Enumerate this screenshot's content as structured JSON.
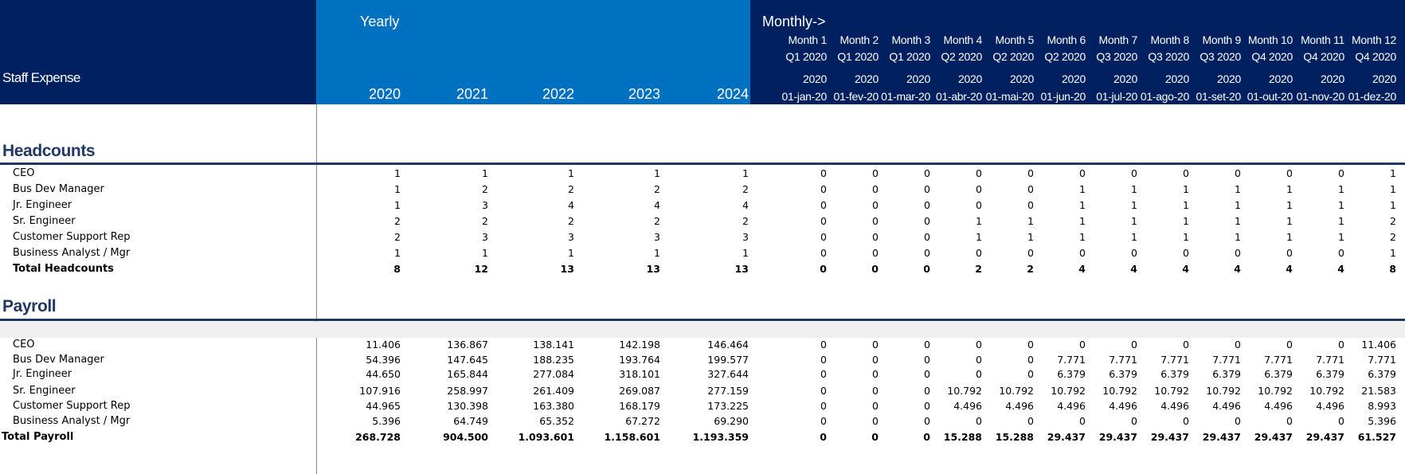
{
  "header": {
    "staff_expense": "Staff Expense",
    "yearly": "Yearly",
    "monthly": "Monthly->",
    "years": [
      "2020",
      "2021",
      "2022",
      "2023",
      "2024"
    ],
    "months": [
      {
        "m": "Month 1",
        "q": "Q1 2020",
        "y": "2020",
        "d": "01-jan-20"
      },
      {
        "m": "Month 2",
        "q": "Q1 2020",
        "y": "2020",
        "d": "01-fev-20"
      },
      {
        "m": "Month 3",
        "q": "Q1 2020",
        "y": "2020",
        "d": "01-mar-20"
      },
      {
        "m": "Month 4",
        "q": "Q2 2020",
        "y": "2020",
        "d": "01-abr-20"
      },
      {
        "m": "Month 5",
        "q": "Q2 2020",
        "y": "2020",
        "d": "01-mai-20"
      },
      {
        "m": "Month 6",
        "q": "Q2 2020",
        "y": "2020",
        "d": "01-jun-20"
      },
      {
        "m": "Month 7",
        "q": "Q3 2020",
        "y": "2020",
        "d": "01-jul-20"
      },
      {
        "m": "Month 8",
        "q": "Q3 2020",
        "y": "2020",
        "d": "01-ago-20"
      },
      {
        "m": "Month 9",
        "q": "Q3 2020",
        "y": "2020",
        "d": "01-set-20"
      },
      {
        "m": "Month 10",
        "q": "Q4 2020",
        "y": "2020",
        "d": "01-out-20"
      },
      {
        "m": "Month 11",
        "q": "Q4 2020",
        "y": "2020",
        "d": "01-nov-20"
      },
      {
        "m": "Month 12",
        "q": "Q4 2020",
        "y": "2020",
        "d": "01-dez-20"
      }
    ]
  },
  "headcounts": {
    "title": "Headcounts",
    "rows": [
      {
        "label": "CEO",
        "yearly": [
          "1",
          "1",
          "1",
          "1",
          "1"
        ],
        "monthly": [
          "0",
          "0",
          "0",
          "0",
          "0",
          "0",
          "0",
          "0",
          "0",
          "0",
          "0",
          "1"
        ]
      },
      {
        "label": "Bus Dev Manager",
        "yearly": [
          "1",
          "2",
          "2",
          "2",
          "2"
        ],
        "monthly": [
          "0",
          "0",
          "0",
          "0",
          "0",
          "1",
          "1",
          "1",
          "1",
          "1",
          "1",
          "1"
        ]
      },
      {
        "label": "Jr. Engineer",
        "yearly": [
          "1",
          "3",
          "4",
          "4",
          "4"
        ],
        "monthly": [
          "0",
          "0",
          "0",
          "0",
          "0",
          "1",
          "1",
          "1",
          "1",
          "1",
          "1",
          "1"
        ]
      },
      {
        "label": "Sr. Engineer",
        "yearly": [
          "2",
          "2",
          "2",
          "2",
          "2"
        ],
        "monthly": [
          "0",
          "0",
          "0",
          "1",
          "1",
          "1",
          "1",
          "1",
          "1",
          "1",
          "1",
          "2"
        ]
      },
      {
        "label": "Customer Support Rep",
        "yearly": [
          "2",
          "3",
          "3",
          "3",
          "3"
        ],
        "monthly": [
          "0",
          "0",
          "0",
          "1",
          "1",
          "1",
          "1",
          "1",
          "1",
          "1",
          "1",
          "2"
        ]
      },
      {
        "label": "Business Analyst / Mgr",
        "yearly": [
          "1",
          "1",
          "1",
          "1",
          "1"
        ],
        "monthly": [
          "0",
          "0",
          "0",
          "0",
          "0",
          "0",
          "0",
          "0",
          "0",
          "0",
          "0",
          "1"
        ]
      }
    ],
    "total": {
      "label": "Total Headcounts",
      "yearly": [
        "8",
        "12",
        "13",
        "13",
        "13"
      ],
      "monthly": [
        "0",
        "0",
        "0",
        "2",
        "2",
        "4",
        "4",
        "4",
        "4",
        "4",
        "4",
        "8"
      ]
    }
  },
  "payroll": {
    "title": "Payroll",
    "rows": [
      {
        "label": "CEO",
        "yearly": [
          "11.406",
          "136.867",
          "138.141",
          "142.198",
          "146.464"
        ],
        "monthly": [
          "0",
          "0",
          "0",
          "0",
          "0",
          "0",
          "0",
          "0",
          "0",
          "0",
          "0",
          "11.406"
        ]
      },
      {
        "label": "Bus Dev Manager",
        "yearly": [
          "54.396",
          "147.645",
          "188.235",
          "193.764",
          "199.577"
        ],
        "monthly": [
          "0",
          "0",
          "0",
          "0",
          "0",
          "7.771",
          "7.771",
          "7.771",
          "7.771",
          "7.771",
          "7.771",
          "7.771"
        ]
      },
      {
        "label": "Jr. Engineer",
        "yearly": [
          "44.650",
          "165.844",
          "277.084",
          "318.101",
          "327.644"
        ],
        "monthly": [
          "0",
          "0",
          "0",
          "0",
          "0",
          "6.379",
          "6.379",
          "6.379",
          "6.379",
          "6.379",
          "6.379",
          "6.379"
        ]
      },
      {
        "label": "Sr. Engineer",
        "yearly": [
          "107.916",
          "258.997",
          "261.409",
          "269.087",
          "277.159"
        ],
        "monthly": [
          "0",
          "0",
          "0",
          "10.792",
          "10.792",
          "10.792",
          "10.792",
          "10.792",
          "10.792",
          "10.792",
          "10.792",
          "21.583"
        ]
      },
      {
        "label": "Customer Support Rep",
        "yearly": [
          "44.965",
          "130.398",
          "163.380",
          "168.179",
          "173.225"
        ],
        "monthly": [
          "0",
          "0",
          "0",
          "4.496",
          "4.496",
          "4.496",
          "4.496",
          "4.496",
          "4.496",
          "4.496",
          "4.496",
          "8.993"
        ]
      },
      {
        "label": "Business Analyst / Mgr",
        "yearly": [
          "5.396",
          "64.749",
          "65.352",
          "67.272",
          "69.290"
        ],
        "monthly": [
          "0",
          "0",
          "0",
          "0",
          "0",
          "0",
          "0",
          "0",
          "0",
          "0",
          "0",
          "5.396"
        ]
      }
    ],
    "total": {
      "label": "Total Payroll",
      "yearly": [
        "268.728",
        "904.500",
        "1.093.601",
        "1.158.601",
        "1.193.359"
      ],
      "monthly": [
        "0",
        "0",
        "0",
        "15.288",
        "15.288",
        "29.437",
        "29.437",
        "29.437",
        "29.437",
        "29.437",
        "29.437",
        "61.527"
      ]
    }
  }
}
